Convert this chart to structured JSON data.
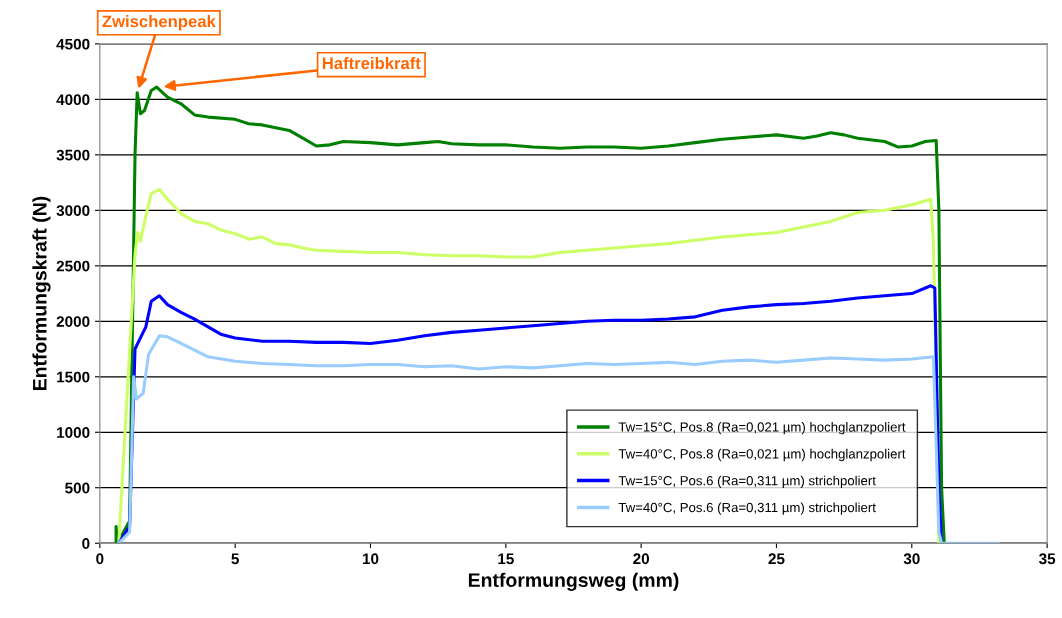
{
  "chart_data": {
    "type": "line",
    "xlabel": "Entformungsweg (mm)",
    "ylabel": "Entformungskraft (N)",
    "xlim": [
      0,
      35
    ],
    "xticks": [
      0,
      5,
      10,
      15,
      20,
      25,
      30,
      35
    ],
    "ylim": [
      0,
      4500
    ],
    "yticks": [
      0,
      500,
      1000,
      1500,
      2000,
      2500,
      3000,
      3500,
      4000,
      4500
    ],
    "grid": "y",
    "legend": "bottom right",
    "marker": "none",
    "line_style": "solid",
    "annotations": [
      {
        "text": "Zwischenpeak",
        "x": 1.38,
        "y": 4060
      },
      {
        "text": "Haftreibkraft",
        "x": 2.2,
        "y": 4110
      }
    ],
    "series": [
      {
        "name": "Tw=15°C, Pos.8 (Ra=0,021 µm) hochglanzpoliert",
        "color": "#008000",
        "x": [
          0.6,
          0.6,
          0.65,
          1.1,
          1.3,
          1.38,
          1.5,
          1.65,
          1.9,
          2.1,
          2.5,
          3,
          3.5,
          4,
          5,
          5.5,
          6,
          7,
          7.5,
          8,
          8.5,
          9,
          10,
          11,
          12,
          12.5,
          13,
          14,
          15,
          16,
          17,
          18,
          19,
          20,
          21,
          22,
          23,
          24,
          25,
          26,
          26.5,
          27,
          27.5,
          28,
          29,
          29.5,
          30,
          30.5,
          30.9,
          31.0,
          31.1,
          31.2
        ],
        "values": [
          0,
          150,
          0,
          200,
          3500,
          4060,
          3870,
          3900,
          4080,
          4110,
          4020,
          3960,
          3860,
          3840,
          3820,
          3780,
          3770,
          3720,
          3650,
          3580,
          3590,
          3620,
          3610,
          3590,
          3610,
          3620,
          3600,
          3590,
          3590,
          3570,
          3560,
          3570,
          3570,
          3560,
          3580,
          3610,
          3640,
          3660,
          3680,
          3650,
          3670,
          3700,
          3680,
          3650,
          3620,
          3570,
          3580,
          3620,
          3630,
          3000,
          500,
          0
        ]
      },
      {
        "name": "Tw=40°C, Pos.8 (Ra=0,021 µm) hochglanzpoliert",
        "color": "#ccff66",
        "x": [
          0.7,
          1.3,
          1.4,
          1.5,
          1.7,
          1.9,
          2.2,
          2.5,
          3,
          3.5,
          4,
          4.5,
          5,
          5.5,
          6,
          6.5,
          7,
          7.5,
          8,
          9,
          10,
          11,
          12,
          13,
          14,
          15,
          16,
          17,
          18,
          19,
          20,
          21,
          22,
          23,
          24,
          25,
          26,
          27,
          28,
          29,
          30,
          30.7,
          30.8,
          31.0
        ],
        "values": [
          0,
          2600,
          2800,
          2720,
          2950,
          3150,
          3190,
          3100,
          2970,
          2900,
          2880,
          2820,
          2790,
          2740,
          2760,
          2700,
          2690,
          2660,
          2640,
          2630,
          2620,
          2620,
          2600,
          2590,
          2590,
          2580,
          2580,
          2620,
          2640,
          2660,
          2680,
          2700,
          2730,
          2760,
          2780,
          2800,
          2850,
          2900,
          2980,
          3000,
          3050,
          3100,
          2700,
          0
        ]
      },
      {
        "name": "Tw=15°C, Pos.6 (Ra=0,311 µm) strichpoliert",
        "color": "#0000ff",
        "x": [
          0.7,
          1.1,
          1.3,
          1.5,
          1.7,
          1.9,
          2.2,
          2.5,
          3,
          3.5,
          4,
          4.5,
          5,
          6,
          7,
          8,
          9,
          10,
          11,
          12,
          13,
          14,
          15,
          16,
          17,
          18,
          19,
          20,
          21,
          22,
          23,
          24,
          25,
          26,
          27,
          28,
          29,
          30,
          30.7,
          30.85,
          31.0,
          31.1
        ],
        "values": [
          0,
          150,
          1750,
          1850,
          1950,
          2180,
          2230,
          2150,
          2080,
          2020,
          1950,
          1880,
          1850,
          1820,
          1820,
          1810,
          1810,
          1800,
          1830,
          1870,
          1900,
          1920,
          1940,
          1960,
          1980,
          2000,
          2010,
          2010,
          2020,
          2040,
          2100,
          2130,
          2150,
          2160,
          2180,
          2210,
          2230,
          2250,
          2320,
          2300,
          500,
          0
        ]
      },
      {
        "name": "Tw=40°C, Pos.6 (Ra=0,311 µm) strichpoliert",
        "color": "#99ccff",
        "x": [
          0.7,
          1.1,
          1.25,
          1.35,
          1.6,
          1.8,
          2.2,
          2.5,
          3,
          3.5,
          4,
          5,
          6,
          7,
          8,
          9,
          10,
          11,
          12,
          13,
          14,
          15,
          16,
          17,
          18,
          19,
          20,
          21,
          22,
          23,
          24,
          25,
          26,
          27,
          28,
          29,
          30,
          30.8,
          31.0,
          31.1,
          33.2
        ],
        "values": [
          0,
          100,
          1500,
          1300,
          1350,
          1700,
          1870,
          1860,
          1800,
          1740,
          1680,
          1640,
          1620,
          1610,
          1600,
          1600,
          1610,
          1610,
          1590,
          1600,
          1570,
          1590,
          1580,
          1600,
          1620,
          1610,
          1620,
          1630,
          1610,
          1640,
          1650,
          1630,
          1650,
          1670,
          1660,
          1650,
          1660,
          1680,
          100,
          0,
          0
        ]
      }
    ]
  }
}
